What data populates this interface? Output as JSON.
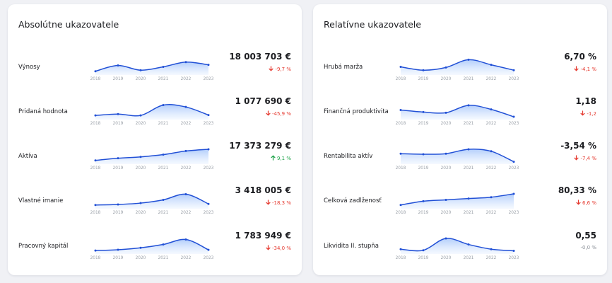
{
  "colors": {
    "line": "#2150d6",
    "fill_top": "#aecbfb",
    "fill_bottom": "#eef5ff",
    "down": "#e5392f",
    "up": "#1fa34a",
    "neutral": "#8a8f97"
  },
  "years": [
    "2018",
    "2019",
    "2020",
    "2021",
    "2022",
    "2023"
  ],
  "cards": [
    {
      "id": "absolute",
      "title": "Absolútne ukazovatele",
      "rows": [
        {
          "key": "vynosy",
          "label": "Výnosy",
          "value": "18 003 703 €",
          "change": "-9,7 %",
          "direction": "down",
          "arrow_icon": "arrow-down-icon",
          "series": [
            0.12,
            0.55,
            0.2,
            0.45,
            0.8,
            0.6
          ]
        },
        {
          "key": "pridana-hodnota",
          "label": "Pridaná hodnota",
          "value": "1 077 690 €",
          "change": "-45,9 %",
          "direction": "down",
          "arrow_icon": "arrow-down-icon",
          "series": [
            0.15,
            0.25,
            0.15,
            0.92,
            0.78,
            0.18
          ]
        },
        {
          "key": "aktiva",
          "label": "Aktíva",
          "value": "17 373 279 €",
          "change": "9,1 %",
          "direction": "up",
          "arrow_icon": "arrow-up-icon",
          "series": [
            0.12,
            0.28,
            0.38,
            0.55,
            0.82,
            0.95
          ]
        },
        {
          "key": "vlastne-imanie",
          "label": "Vlastné imanie",
          "value": "3 418 005 €",
          "change": "-18,3 %",
          "direction": "down",
          "arrow_icon": "arrow-down-icon",
          "series": [
            0.12,
            0.16,
            0.26,
            0.5,
            0.92,
            0.2
          ]
        },
        {
          "key": "pracovny-kapital",
          "label": "Pracovný kapitál",
          "value": "1 783 949 €",
          "change": "-34,0 %",
          "direction": "down",
          "arrow_icon": "arrow-down-icon",
          "series": [
            0.1,
            0.16,
            0.3,
            0.55,
            0.92,
            0.15
          ]
        }
      ]
    },
    {
      "id": "relative",
      "title": "Relatívne ukazovatele",
      "rows": [
        {
          "key": "hruba-marza",
          "label": "Hrubá marža",
          "value": "6,70 %",
          "change": "-4,1 %",
          "direction": "down",
          "arrow_icon": "arrow-down-icon",
          "series": [
            0.45,
            0.2,
            0.4,
            0.98,
            0.6,
            0.2
          ]
        },
        {
          "key": "financna-produktivita",
          "label": "Finančná produktivita",
          "value": "1,18",
          "change": "-1,2",
          "direction": "down",
          "arrow_icon": "arrow-down-icon",
          "series": [
            0.55,
            0.4,
            0.35,
            0.9,
            0.6,
            0.05
          ]
        },
        {
          "key": "rentabilita-aktiv",
          "label": "Rentabilita aktív",
          "value": "-3,54 %",
          "change": "-7,4 %",
          "direction": "down",
          "arrow_icon": "arrow-down-icon",
          "series": [
            0.62,
            0.58,
            0.62,
            0.95,
            0.8,
            0.02
          ]
        },
        {
          "key": "celkova-zadlzenost",
          "label": "Celková zadlženosť",
          "value": "80,33 %",
          "change": "6,6 %",
          "direction": "down",
          "arrow_icon": "arrow-down-icon",
          "series": [
            0.12,
            0.4,
            0.5,
            0.6,
            0.7,
            0.95
          ]
        },
        {
          "key": "likvidita-ii-stupna",
          "label": "Likvidita II. stupňa",
          "value": "0,55",
          "change": "-0,0 %",
          "direction": "neutral",
          "arrow_icon": "",
          "series": [
            0.2,
            0.12,
            1.0,
            0.55,
            0.2,
            0.08
          ]
        }
      ]
    }
  ]
}
